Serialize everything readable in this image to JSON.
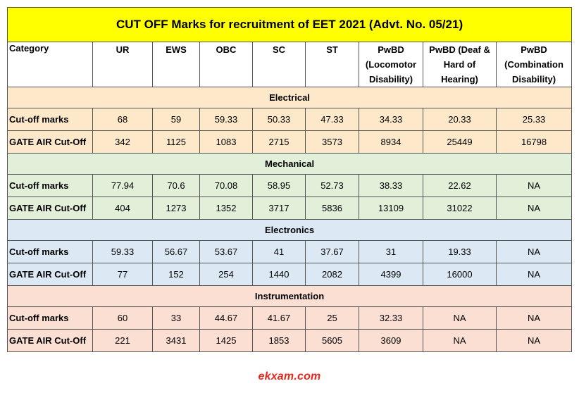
{
  "title": "CUT OFF Marks for recruitment of EET 2021 (Advt. No. 05/21)",
  "headers": {
    "category": "Category",
    "ur": "UR",
    "ews": "EWS",
    "obc": "OBC",
    "sc": "SC",
    "st": "ST",
    "pwbd_loco": "PwBD (Locomotor Disability)",
    "pwbd_deaf": "PwBD (Deaf & Hard of Hearing)",
    "pwbd_comb": "PwBD (Combination Disability)"
  },
  "sections": [
    {
      "name": "Electrical",
      "rows": [
        {
          "label": "Cut-off marks",
          "values": [
            "68",
            "59",
            "59.33",
            "50.33",
            "47.33",
            "34.33",
            "20.33",
            "25.33"
          ]
        },
        {
          "label": "GATE AIR Cut-Off",
          "values": [
            "342",
            "1125",
            "1083",
            "2715",
            "3573",
            "8934",
            "25449",
            "16798"
          ]
        }
      ]
    },
    {
      "name": "Mechanical",
      "rows": [
        {
          "label": "Cut-off marks",
          "values": [
            "77.94",
            "70.6",
            "70.08",
            "58.95",
            "52.73",
            "38.33",
            "22.62",
            "NA"
          ]
        },
        {
          "label": "GATE AIR Cut-Off",
          "values": [
            "404",
            "1273",
            "1352",
            "3717",
            "5836",
            "13109",
            "31022",
            "NA"
          ]
        }
      ]
    },
    {
      "name": "Electronics",
      "rows": [
        {
          "label": "Cut-off marks",
          "values": [
            "59.33",
            "56.67",
            "53.67",
            "41",
            "37.67",
            "31",
            "19.33",
            "NA"
          ]
        },
        {
          "label": "GATE AIR Cut-Off",
          "values": [
            "77",
            "152",
            "254",
            "1440",
            "2082",
            "4399",
            "16000",
            "NA"
          ]
        }
      ]
    },
    {
      "name": "Instrumentation",
      "rows": [
        {
          "label": "Cut-off marks",
          "values": [
            "60",
            "33",
            "44.67",
            "41.67",
            "25",
            "32.33",
            "NA",
            "NA"
          ]
        },
        {
          "label": "GATE AIR Cut-Off",
          "values": [
            "221",
            "3431",
            "1425",
            "1853",
            "5605",
            "3609",
            "NA",
            "NA"
          ]
        }
      ]
    }
  ],
  "watermark": "ekxam.com",
  "colors": {
    "title_bg": "#ffff00",
    "electrical_bg": "#fde9c9",
    "mechanical_bg": "#e2efd9",
    "electronics_bg": "#dce9f5",
    "instrumentation_bg": "#fbdfd2",
    "watermark": "#e8261c"
  }
}
